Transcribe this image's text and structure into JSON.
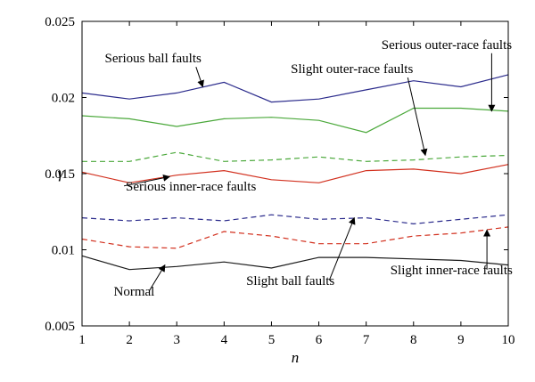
{
  "chart_data": {
    "type": "line",
    "xlabel": "n",
    "ylabel": "γ",
    "xlim": [
      1,
      10
    ],
    "ylim": [
      0.005,
      0.025
    ],
    "x": [
      1,
      2,
      3,
      4,
      5,
      6,
      7,
      8,
      9,
      10
    ],
    "x_ticks": [
      "1",
      "2",
      "3",
      "4",
      "5",
      "6",
      "7",
      "8",
      "9",
      "10"
    ],
    "y_ticks": [
      {
        "value": 0.005,
        "label": "0.005"
      },
      {
        "value": 0.01,
        "label": "0.01"
      },
      {
        "value": 0.015,
        "label": "0.015"
      },
      {
        "value": 0.02,
        "label": "0.02"
      },
      {
        "value": 0.025,
        "label": "0.025"
      }
    ],
    "grid": false,
    "series": [
      {
        "id": "serious-ball",
        "name": "Serious ball faults",
        "color": "#2b2b8c",
        "dash": "solid",
        "values": [
          0.0203,
          0.0199,
          0.0203,
          0.021,
          0.0197,
          0.0199,
          0.0205,
          0.0211,
          0.0207,
          0.0215
        ]
      },
      {
        "id": "serious-outer",
        "name": "Serious outer-race faults",
        "color": "#4aa83a",
        "dash": "solid",
        "values": [
          0.0188,
          0.0186,
          0.0181,
          0.0186,
          0.0187,
          0.0185,
          0.0177,
          0.0193,
          0.0193,
          0.0191
        ]
      },
      {
        "id": "slight-outer",
        "name": "Slight outer-race faults",
        "color": "#4aa83a",
        "dash": "dashed",
        "values": [
          0.0158,
          0.0158,
          0.0164,
          0.0158,
          0.0159,
          0.0161,
          0.0158,
          0.0159,
          0.0161,
          0.0162
        ]
      },
      {
        "id": "serious-inner",
        "name": "Serious inner-race faults",
        "color": "#d2301e",
        "dash": "solid",
        "values": [
          0.0151,
          0.0144,
          0.0149,
          0.0152,
          0.0146,
          0.0144,
          0.0152,
          0.0153,
          0.015,
          0.0156
        ]
      },
      {
        "id": "slight-ball",
        "name": "Slight ball faults",
        "color": "#2b2b8c",
        "dash": "dashed",
        "values": [
          0.0121,
          0.0119,
          0.0121,
          0.0119,
          0.0123,
          0.012,
          0.0121,
          0.0117,
          0.012,
          0.0123
        ]
      },
      {
        "id": "slight-inner",
        "name": "Slight inner-race faults",
        "color": "#d2301e",
        "dash": "dashed",
        "values": [
          0.0107,
          0.0102,
          0.0101,
          0.0112,
          0.0109,
          0.0104,
          0.0104,
          0.0109,
          0.0111,
          0.0115
        ]
      },
      {
        "id": "normal",
        "name": "Normal",
        "color": "#1a1a1a",
        "dash": "solid",
        "values": [
          0.0096,
          0.0087,
          0.0089,
          0.0092,
          0.0088,
          0.0095,
          0.0095,
          0.0094,
          0.0093,
          0.009
        ]
      }
    ],
    "annotations": [
      {
        "id": "serious-ball",
        "text": "Serious ball faults",
        "text_x": 2.5,
        "text_y": 0.0223,
        "anchor": "middle",
        "tip_x": 3.55,
        "tip_y": 0.0207
      },
      {
        "id": "slight-outer",
        "text": "Slight outer-race faults",
        "text_x": 6.7,
        "text_y": 0.0216,
        "anchor": "middle",
        "tip_x": 8.25,
        "tip_y": 0.0162
      },
      {
        "id": "serious-outer",
        "text": "Serious outer-race faults",
        "text_x": 8.7,
        "text_y": 0.0232,
        "anchor": "middle",
        "tip_x": 9.65,
        "tip_y": 0.0191
      },
      {
        "id": "serious-inner",
        "text": "Serious inner-race faults",
        "text_x": 3.3,
        "text_y": 0.0139,
        "anchor": "middle",
        "tip_x": 2.85,
        "tip_y": 0.0148
      },
      {
        "id": "slight-ball",
        "text": "Slight ball faults",
        "text_x": 5.4,
        "text_y": 0.0077,
        "anchor": "middle",
        "tip_x": 6.75,
        "tip_y": 0.0121
      },
      {
        "id": "slight-inner",
        "text": "Slight inner-race faults",
        "text_x": 8.8,
        "text_y": 0.0084,
        "anchor": "middle",
        "tip_x": 9.55,
        "tip_y": 0.0113
      },
      {
        "id": "normal",
        "text": "Normal",
        "text_x": 2.1,
        "text_y": 0.007,
        "anchor": "middle",
        "tip_x": 2.75,
        "tip_y": 0.009
      }
    ]
  }
}
